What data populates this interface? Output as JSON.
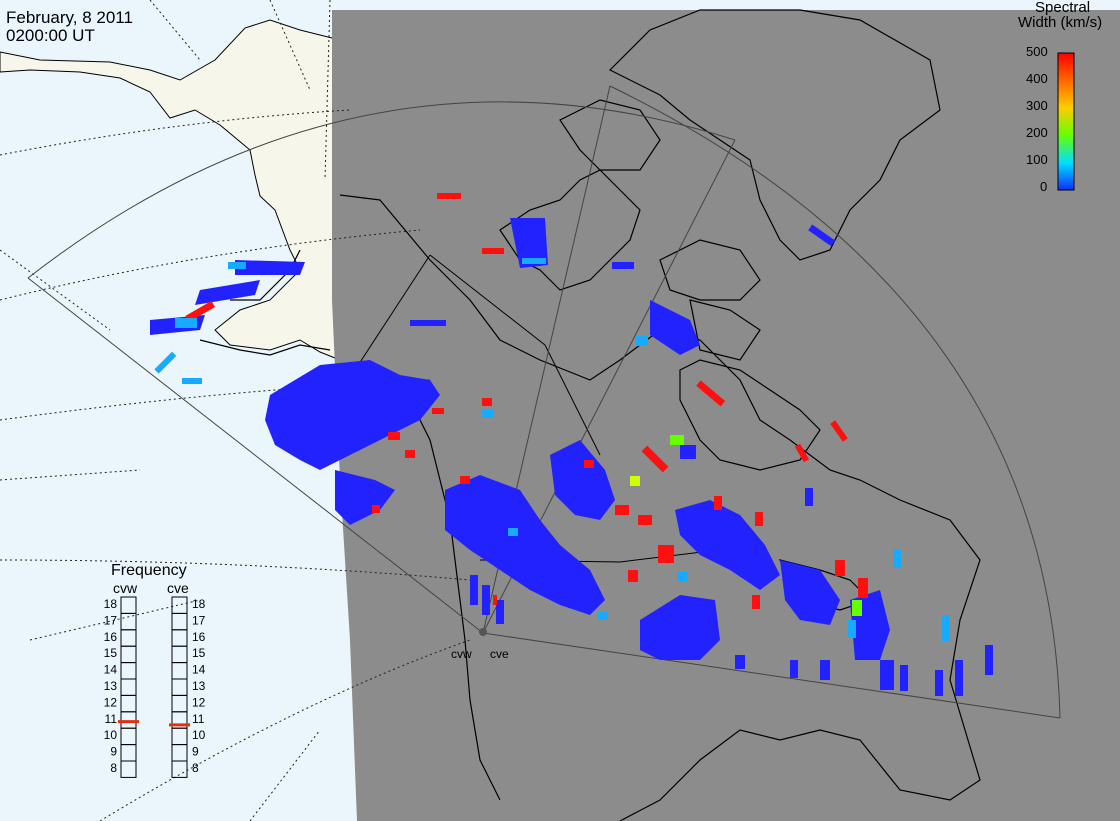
{
  "header": {
    "date": "February, 8 2011",
    "time": "0200:00 UT"
  },
  "colorbar": {
    "title_line1": "Spectral",
    "title_line2": "Width (km/s)",
    "ticks": [
      "500",
      "400",
      "300",
      "200",
      "100",
      "0"
    ],
    "colors": [
      "#ff0000",
      "#ff6600",
      "#ffcc00",
      "#66ff00",
      "#00e0ff",
      "#1030ff"
    ]
  },
  "frequency": {
    "title": "Frequency",
    "radars": [
      {
        "name": "cvw",
        "value_mhz": 10.9
      },
      {
        "name": "cve",
        "value_mhz": 10.7
      }
    ],
    "scale": [
      "18",
      "17",
      "16",
      "15",
      "14",
      "13",
      "12",
      "11",
      "10",
      "9",
      "8"
    ]
  },
  "radar_sites": [
    "cvw",
    "cve"
  ],
  "colors": {
    "night_shade": "#8c8c8c",
    "day_ocean": "#eaf6fc",
    "day_land": "#f6f6ea",
    "echo_low": "#2222ff",
    "echo_mid": "#18aaff",
    "echo_high": "#ff1010",
    "frequency_marker": "#e03010"
  }
}
